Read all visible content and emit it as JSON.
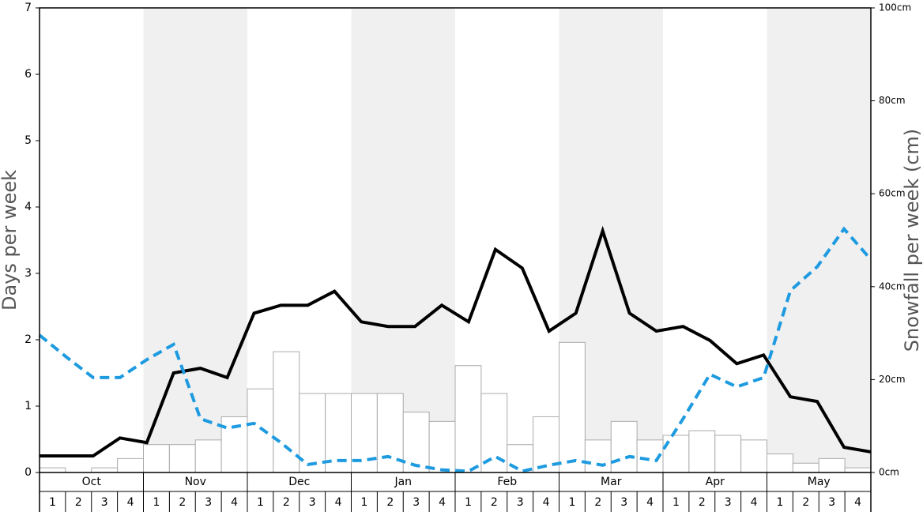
{
  "chart_data": {
    "type": "bar_line",
    "ylabel": "Days per week",
    "y2label": "Snowfall per week (cm)",
    "months": [
      "Oct",
      "Nov",
      "Dec",
      "Jan",
      "Feb",
      "Mar",
      "Apr",
      "May"
    ],
    "week_labels": [
      "1",
      "2",
      "3",
      "4"
    ],
    "shaded_months": [
      1,
      3,
      5,
      7
    ],
    "shade_color": "#f0f0f0",
    "ylim": [
      0,
      7
    ],
    "yticks": [
      0,
      1,
      2,
      3,
      4,
      5,
      6,
      7
    ],
    "y2lim": [
      0,
      100
    ],
    "y2ticks": [
      {
        "value": 0,
        "label": "0cm"
      },
      {
        "value": 20,
        "label": "20cm"
      },
      {
        "value": 40,
        "label": "40cm"
      },
      {
        "value": 60,
        "label": "60cm"
      },
      {
        "value": 80,
        "label": "80cm"
      },
      {
        "value": 100,
        "label": "100cm"
      }
    ],
    "series": [
      {
        "kind": "bar",
        "axis": "y2",
        "color": "#ffffff",
        "stroke": "#aaaaaa",
        "values": [
          1,
          0,
          1,
          3,
          6,
          6,
          7,
          12,
          18,
          26,
          17,
          17,
          17,
          17,
          13,
          11,
          23,
          17,
          6,
          12,
          28,
          7,
          11,
          7,
          8,
          9,
          8,
          7,
          4,
          2,
          3,
          1
        ]
      },
      {
        "kind": "line",
        "axis": "y",
        "color": "#000000",
        "dashed": false,
        "values": [
          0.25,
          0.25,
          0.25,
          0.52,
          0.45,
          1.5,
          1.57,
          1.43,
          2.4,
          2.52,
          2.52,
          2.73,
          2.27,
          2.2,
          2.2,
          2.52,
          2.27,
          3.36,
          3.08,
          2.13,
          2.4,
          3.64,
          2.4,
          2.13,
          2.2,
          1.99,
          1.64,
          1.77,
          1.14,
          1.07,
          0.38,
          0.31
        ]
      },
      {
        "kind": "line",
        "axis": "y",
        "color": "#1e9be0",
        "dashed": true,
        "values": [
          2.07,
          1.74,
          1.43,
          1.43,
          1.7,
          1.93,
          0.81,
          0.67,
          0.74,
          0.45,
          0.12,
          0.18,
          0.18,
          0.24,
          0.11,
          0.04,
          0.02,
          0.24,
          0.02,
          0.11,
          0.18,
          0.11,
          0.24,
          0.18,
          0.81,
          1.48,
          1.29,
          1.43,
          2.74,
          3.1,
          3.67,
          3.21
        ]
      }
    ]
  }
}
